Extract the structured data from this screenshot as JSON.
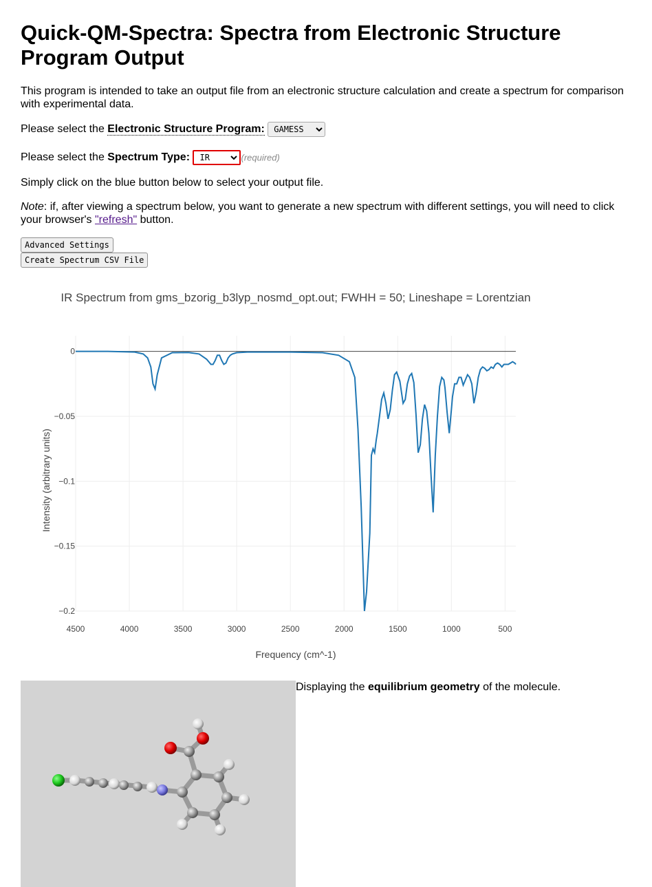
{
  "header": {
    "title": "Quick-QM-Spectra: Spectra from Electronic Structure Program Output"
  },
  "intro": {
    "text": "This program is intended to take an output file from an electronic structure calculation and create a spectrum for comparison with experimental data."
  },
  "program_select": {
    "prefix": "Please select the ",
    "label": "Electronic Structure Program:",
    "value": "GAMESS"
  },
  "spectrum_select": {
    "prefix": "Please select the ",
    "label": "Spectrum Type:",
    "value": "IR",
    "required": "(required)"
  },
  "instructions": {
    "text": "Simply click on the blue button below to select your output file."
  },
  "note": {
    "label": "Note",
    "text_before": ": if, after viewing a spectrum below, you want to generate a new spectrum with different settings, you will need to click your browser's ",
    "link": "\"refresh\"",
    "text_after": " button."
  },
  "buttons": {
    "advanced": "Advanced Settings",
    "csv": "Create Spectrum CSV File"
  },
  "chart_data": {
    "type": "line",
    "title": "IR Spectrum from gms_bzorig_b3lyp_nosmd_opt.out; FWHH = 50; Lineshape = Lorentzian",
    "xlabel": "Frequency (cm^-1)",
    "ylabel": "Intensity (arbitrary units)",
    "xlim": [
      4500,
      400
    ],
    "ylim": [
      -0.2,
      0.0
    ],
    "x_reversed": true,
    "grid": true,
    "line_color": "#1f77b4",
    "xticks": [
      "4500",
      "4000",
      "3500",
      "3000",
      "2500",
      "2000",
      "1500",
      "1000",
      "500"
    ],
    "yticks": [
      "0",
      "−0.05",
      "−0.1",
      "−0.15",
      "−0.2"
    ],
    "series": [
      {
        "x": [
          4500,
          4200,
          3950,
          3870,
          3830,
          3800,
          3780,
          3760,
          3740,
          3700,
          3600,
          3450,
          3350,
          3280,
          3240,
          3220,
          3200,
          3180,
          3160,
          3140,
          3120,
          3100,
          3080,
          3060,
          3040,
          3000,
          2900,
          2500,
          2200,
          2050,
          1950,
          1900,
          1870,
          1840,
          1810,
          1790,
          1760,
          1745,
          1730,
          1715,
          1700,
          1690,
          1670,
          1650,
          1630,
          1610,
          1590,
          1570,
          1550,
          1530,
          1510,
          1480,
          1450,
          1430,
          1410,
          1390,
          1370,
          1350,
          1330,
          1310,
          1290,
          1270,
          1250,
          1230,
          1210,
          1190,
          1170,
          1150,
          1130,
          1110,
          1090,
          1070,
          1060,
          1040,
          1020,
          1000,
          990,
          970,
          950,
          930,
          910,
          890,
          870,
          850,
          830,
          810,
          790,
          770,
          750,
          730,
          710,
          690,
          670,
          650,
          630,
          610,
          590,
          570,
          550,
          530,
          510,
          490,
          470,
          450,
          430,
          410,
          400
        ],
        "y": [
          0.0,
          0.0,
          -0.0005,
          -0.002,
          -0.005,
          -0.012,
          -0.025,
          -0.029,
          -0.018,
          -0.005,
          -0.001,
          -0.0008,
          -0.002,
          -0.006,
          -0.01,
          -0.01,
          -0.007,
          -0.003,
          -0.003,
          -0.007,
          -0.01,
          -0.009,
          -0.005,
          -0.003,
          -0.002,
          -0.001,
          -0.0005,
          -0.0005,
          -0.001,
          -0.003,
          -0.008,
          -0.02,
          -0.06,
          -0.12,
          -0.2,
          -0.185,
          -0.14,
          -0.08,
          -0.075,
          -0.078,
          -0.068,
          -0.063,
          -0.05,
          -0.037,
          -0.032,
          -0.04,
          -0.052,
          -0.045,
          -0.03,
          -0.018,
          -0.016,
          -0.023,
          -0.04,
          -0.037,
          -0.025,
          -0.019,
          -0.017,
          -0.024,
          -0.048,
          -0.078,
          -0.072,
          -0.052,
          -0.041,
          -0.046,
          -0.063,
          -0.095,
          -0.124,
          -0.08,
          -0.05,
          -0.027,
          -0.02,
          -0.022,
          -0.028,
          -0.047,
          -0.063,
          -0.045,
          -0.035,
          -0.025,
          -0.025,
          -0.02,
          -0.02,
          -0.026,
          -0.022,
          -0.018,
          -0.02,
          -0.025,
          -0.04,
          -0.032,
          -0.02,
          -0.014,
          -0.012,
          -0.013,
          -0.015,
          -0.014,
          -0.012,
          -0.013,
          -0.01,
          -0.009,
          -0.01,
          -0.012,
          -0.01,
          -0.01,
          -0.01,
          -0.009,
          -0.008,
          -0.009,
          -0.01
        ]
      }
    ]
  },
  "molecule": {
    "caption_before": "Displaying the ",
    "caption_bold": "equilibrium geometry",
    "caption_after": " of the molecule.",
    "background": "#d3d3d3"
  }
}
